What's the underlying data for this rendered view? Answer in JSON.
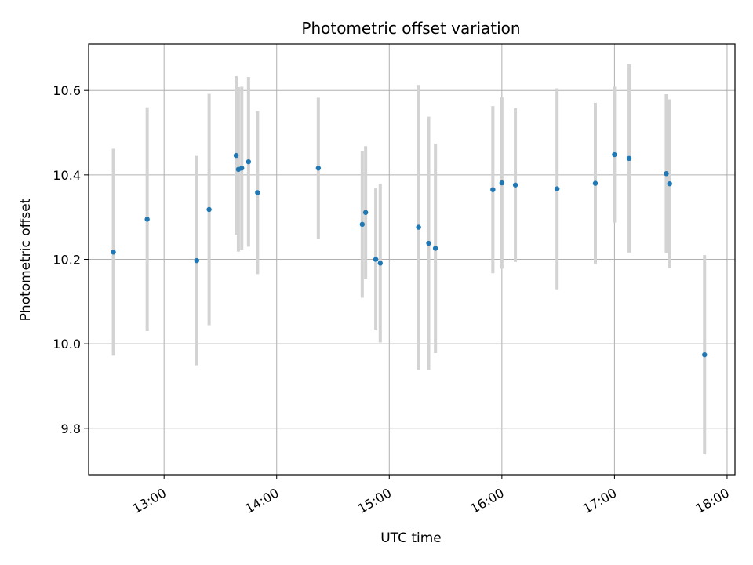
{
  "chart_data": {
    "type": "scatter",
    "title": "Photometric offset variation",
    "xlabel": "UTC time",
    "ylabel": "Photometric offset",
    "x_unit": "UTC time (hours)",
    "xlim": [
      12.33,
      18.07
    ],
    "ylim": [
      9.69,
      10.71
    ],
    "x_ticks": [
      13,
      14,
      15,
      16,
      17,
      18
    ],
    "x_tick_labels": [
      "13:00",
      "14:00",
      "15:00",
      "16:00",
      "17:00",
      "18:00"
    ],
    "y_ticks": [
      9.8,
      10.0,
      10.2,
      10.4,
      10.6
    ],
    "y_tick_labels": [
      "9.8",
      "10.0",
      "10.2",
      "10.4",
      "10.6"
    ],
    "grid": true,
    "marker_color": "#1f77b4",
    "errorbar_color": "#d3d3d3",
    "points": [
      {
        "x": 12.55,
        "y": 10.217,
        "err": 0.245
      },
      {
        "x": 12.85,
        "y": 10.295,
        "err": 0.265
      },
      {
        "x": 13.29,
        "y": 10.197,
        "err": 0.248
      },
      {
        "x": 13.4,
        "y": 10.318,
        "err": 0.274
      },
      {
        "x": 13.64,
        "y": 10.446,
        "err": 0.188
      },
      {
        "x": 13.66,
        "y": 10.413,
        "err": 0.195
      },
      {
        "x": 13.69,
        "y": 10.416,
        "err": 0.193
      },
      {
        "x": 13.75,
        "y": 10.431,
        "err": 0.201
      },
      {
        "x": 13.83,
        "y": 10.358,
        "err": 0.193
      },
      {
        "x": 14.37,
        "y": 10.416,
        "err": 0.167
      },
      {
        "x": 14.76,
        "y": 10.283,
        "err": 0.174
      },
      {
        "x": 14.79,
        "y": 10.311,
        "err": 0.157
      },
      {
        "x": 14.88,
        "y": 10.2,
        "err": 0.168
      },
      {
        "x": 14.92,
        "y": 10.191,
        "err": 0.188
      },
      {
        "x": 15.26,
        "y": 10.276,
        "err": 0.337
      },
      {
        "x": 15.35,
        "y": 10.238,
        "err": 0.3
      },
      {
        "x": 15.41,
        "y": 10.226,
        "err": 0.248
      },
      {
        "x": 15.92,
        "y": 10.365,
        "err": 0.198
      },
      {
        "x": 16.0,
        "y": 10.381,
        "err": 0.203
      },
      {
        "x": 16.12,
        "y": 10.376,
        "err": 0.182
      },
      {
        "x": 16.49,
        "y": 10.367,
        "err": 0.238
      },
      {
        "x": 16.83,
        "y": 10.38,
        "err": 0.191
      },
      {
        "x": 17.0,
        "y": 10.448,
        "err": 0.161
      },
      {
        "x": 17.13,
        "y": 10.439,
        "err": 0.223
      },
      {
        "x": 17.46,
        "y": 10.403,
        "err": 0.188
      },
      {
        "x": 17.49,
        "y": 10.379,
        "err": 0.2
      },
      {
        "x": 17.8,
        "y": 9.974,
        "err": 0.236
      }
    ]
  }
}
